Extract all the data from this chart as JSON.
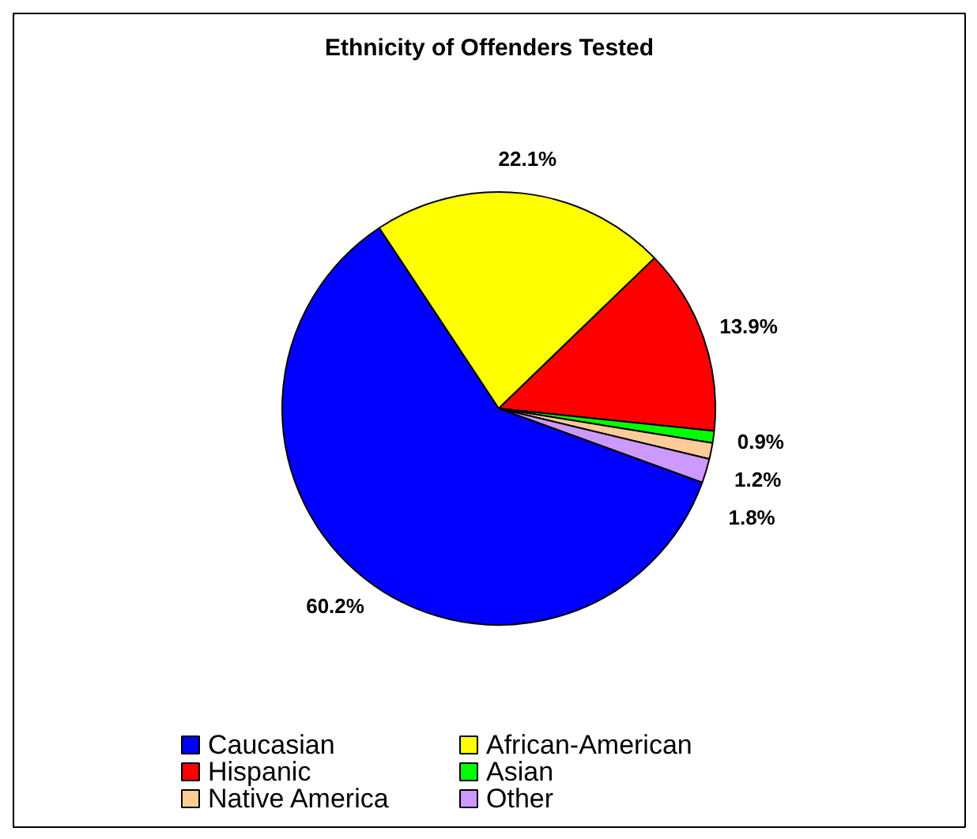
{
  "chart_data": {
    "type": "pie",
    "title": "Ethnicity of Offenders Tested",
    "categories": [
      "Caucasian",
      "African-American",
      "Hispanic",
      "Asian",
      "Native America",
      "Other"
    ],
    "values": [
      60.2,
      22.1,
      13.9,
      0.9,
      1.2,
      1.8
    ],
    "colors": [
      "#0000ff",
      "#ffff00",
      "#ff0000",
      "#00ff00",
      "#ffcc99",
      "#cc99ff"
    ],
    "value_labels": [
      "60.2%",
      "22.1%",
      "13.9%",
      "0.9%",
      "1.2%",
      "1.8%"
    ],
    "legend": "bottom"
  }
}
